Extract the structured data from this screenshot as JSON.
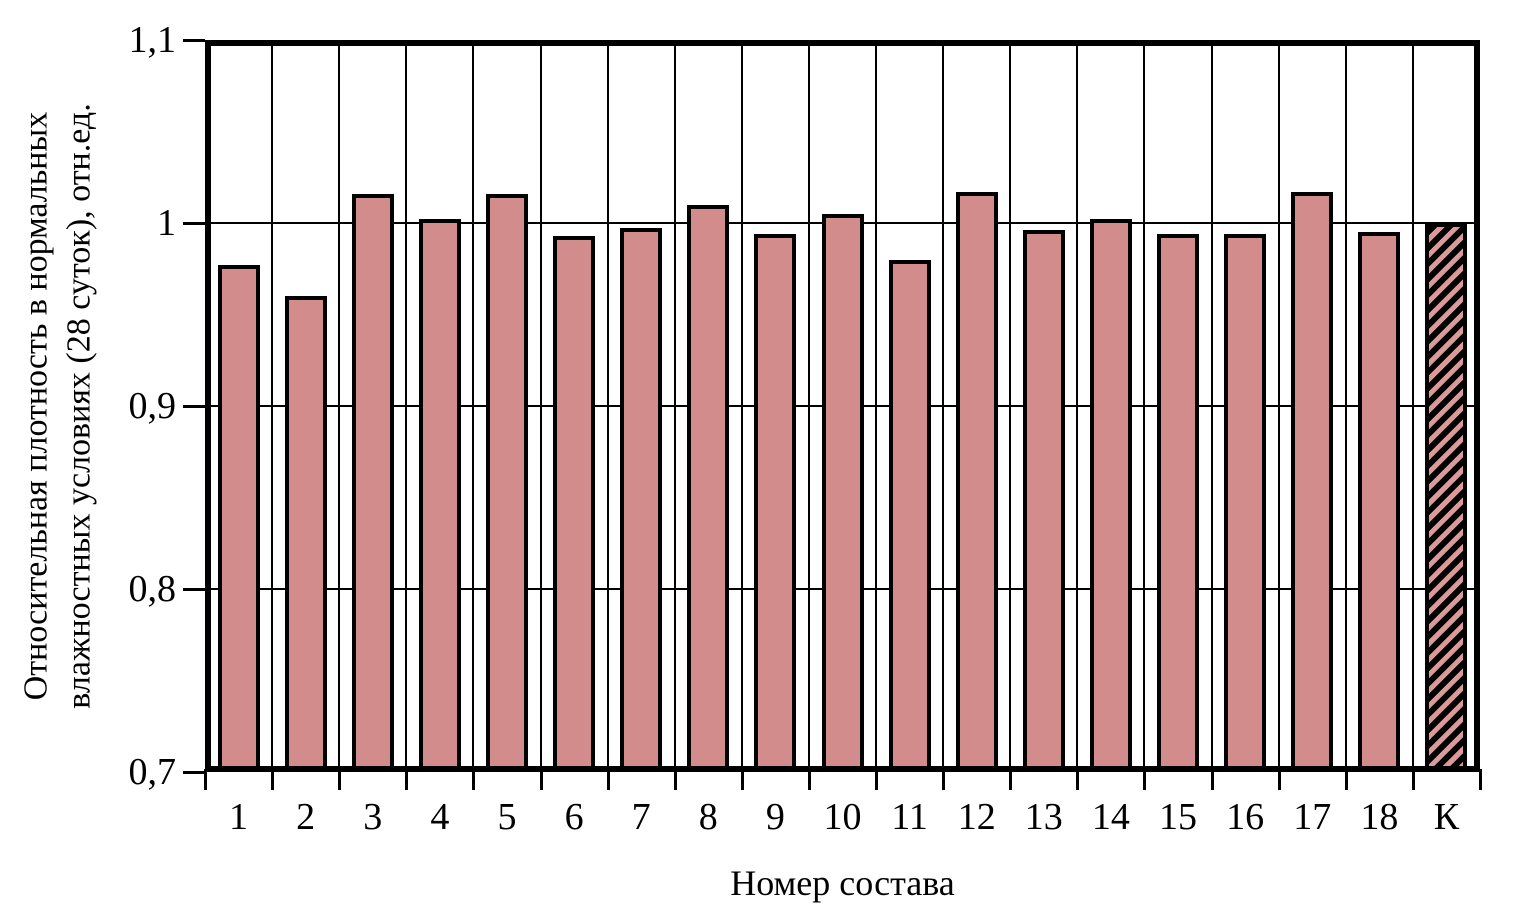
{
  "chart_data": {
    "type": "bar",
    "title": "",
    "xlabel": "Номер состава",
    "ylabel_lines": [
      "Относительная плотность в нормальных",
      "влажностных условиях (28 суток), отн.ед."
    ],
    "ylim": [
      0.7,
      1.1
    ],
    "yticks": [
      {
        "label": "1,1",
        "value": 1.1
      },
      {
        "label": "1",
        "value": 1.0
      },
      {
        "label": "0,9",
        "value": 0.9
      },
      {
        "label": "0,8",
        "value": 0.8
      },
      {
        "label": "0,7",
        "value": 0.7
      }
    ],
    "categories": [
      "1",
      "2",
      "3",
      "4",
      "5",
      "6",
      "7",
      "8",
      "9",
      "10",
      "11",
      "12",
      "13",
      "14",
      "15",
      "16",
      "17",
      "18",
      "К"
    ],
    "values": [
      0.977,
      0.96,
      1.016,
      1.002,
      1.016,
      0.993,
      0.997,
      1.01,
      0.994,
      1.005,
      0.98,
      1.017,
      0.996,
      1.002,
      0.994,
      0.994,
      1.017,
      0.995,
      1.0
    ],
    "control_category": "К",
    "grid": {
      "horizontal": true,
      "vertical": true
    },
    "legend_position": "none",
    "colors": {
      "bar_fill": "#d18c8b",
      "bar_border": "#000000",
      "control_hatch_background": "#000000",
      "control_hatch_stripe": "#d99a98",
      "axis": "#000000",
      "background": "#ffffff"
    }
  }
}
